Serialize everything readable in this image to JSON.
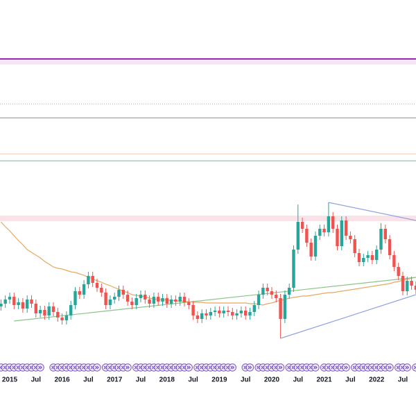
{
  "chart_data": {
    "type": "candlestick",
    "categories": [
      null,
      null,
      "2015",
      null,
      null,
      null,
      null,
      null,
      "Jul",
      null,
      null,
      null,
      null,
      null,
      "2016",
      null,
      null,
      null,
      null,
      null,
      "Jul",
      null,
      null,
      null,
      null,
      null,
      "2017",
      null,
      null,
      null,
      null,
      null,
      "Jul",
      null,
      null,
      null,
      null,
      null,
      "2018",
      null,
      null,
      null,
      null,
      null,
      "Jul",
      null,
      null,
      null,
      null,
      null,
      "2019",
      null,
      null,
      null,
      null,
      null,
      "Jul",
      null,
      null,
      null,
      null,
      null,
      "2020",
      null,
      null,
      null,
      null,
      null,
      "Jul",
      null,
      null,
      null,
      null,
      null,
      "2021",
      null,
      null,
      null,
      null,
      null,
      "Jul",
      null,
      null,
      null,
      null,
      null,
      "2022",
      null,
      null,
      null,
      null,
      null,
      "Jul",
      null,
      null,
      null
    ],
    "open": [
      158,
      162,
      168,
      172,
      160,
      164,
      155,
      168,
      162,
      148,
      153,
      145,
      158,
      150,
      142,
      138,
      145,
      160,
      180,
      175,
      190,
      202,
      192,
      185,
      178,
      160,
      168,
      172,
      182,
      175,
      165,
      160,
      170,
      175,
      168,
      162,
      172,
      165,
      170,
      162,
      168,
      165,
      172,
      164,
      160,
      145,
      140,
      148,
      145,
      150,
      152,
      148,
      152,
      150,
      145,
      148,
      152,
      145,
      150,
      160,
      175,
      185,
      180,
      175,
      170,
      140,
      175,
      185,
      240,
      280,
      270,
      250,
      230,
      260,
      270,
      265,
      288,
      270,
      245,
      282,
      260,
      255,
      235,
      222,
      228,
      232,
      225,
      240,
      270,
      255,
      232,
      215,
      202,
      180,
      195,
      188
    ],
    "high": [
      168,
      174,
      178,
      178,
      170,
      170,
      174,
      174,
      168,
      159,
      159,
      164,
      164,
      156,
      148,
      151,
      166,
      186,
      186,
      196,
      208,
      208,
      198,
      191,
      184,
      174,
      178,
      188,
      188,
      181,
      171,
      176,
      181,
      181,
      174,
      178,
      178,
      176,
      176,
      174,
      174,
      178,
      178,
      170,
      166,
      151,
      154,
      154,
      156,
      158,
      158,
      158,
      158,
      156,
      154,
      158,
      158,
      156,
      166,
      181,
      191,
      191,
      186,
      181,
      176,
      181,
      191,
      246,
      305,
      286,
      276,
      256,
      266,
      276,
      276,
      308,
      294,
      276,
      288,
      288,
      266,
      261,
      241,
      234,
      238,
      238,
      246,
      278,
      276,
      261,
      238,
      221,
      208,
      201,
      201,
      194
    ],
    "low": [
      152,
      156,
      162,
      154,
      154,
      149,
      149,
      156,
      142,
      142,
      139,
      139,
      144,
      136,
      132,
      132,
      139,
      154,
      169,
      169,
      184,
      186,
      179,
      172,
      154,
      154,
      162,
      166,
      169,
      159,
      154,
      154,
      164,
      162,
      156,
      156,
      159,
      159,
      156,
      156,
      159,
      159,
      158,
      154,
      139,
      134,
      134,
      139,
      139,
      144,
      142,
      142,
      144,
      139,
      139,
      142,
      139,
      139,
      144,
      154,
      169,
      174,
      169,
      164,
      112,
      134,
      169,
      179,
      234,
      264,
      244,
      224,
      224,
      254,
      259,
      259,
      264,
      239,
      239,
      254,
      249,
      229,
      216,
      216,
      222,
      219,
      219,
      234,
      249,
      226,
      209,
      196,
      174,
      174,
      182,
      176
    ],
    "close": [
      162,
      168,
      172,
      160,
      164,
      155,
      168,
      162,
      148,
      153,
      145,
      158,
      150,
      142,
      138,
      145,
      160,
      180,
      175,
      190,
      202,
      192,
      185,
      178,
      160,
      168,
      172,
      182,
      175,
      165,
      160,
      170,
      175,
      168,
      162,
      172,
      165,
      170,
      162,
      168,
      165,
      172,
      164,
      160,
      145,
      140,
      148,
      145,
      150,
      152,
      148,
      152,
      150,
      145,
      148,
      152,
      145,
      150,
      160,
      175,
      185,
      180,
      175,
      170,
      140,
      175,
      185,
      240,
      280,
      270,
      250,
      230,
      260,
      270,
      265,
      288,
      270,
      245,
      282,
      260,
      255,
      235,
      222,
      228,
      232,
      225,
      240,
      270,
      255,
      232,
      215,
      202,
      180,
      195,
      188,
      182
    ],
    "up_color": "#26a69a",
    "down_color": "#ef5350",
    "moving_average": {
      "color": "#e8a860",
      "values": [
        280,
        273,
        267,
        260,
        253,
        247,
        240,
        236,
        232,
        228,
        223,
        219,
        215,
        213,
        212,
        210,
        208,
        207,
        205,
        203,
        200,
        198,
        195,
        193,
        190,
        188,
        185,
        183,
        180,
        178,
        175,
        174,
        173,
        172,
        170,
        169,
        168,
        168,
        167,
        167,
        166,
        166,
        165,
        165,
        164,
        164,
        164,
        163,
        163,
        163,
        163,
        163,
        163,
        163,
        163,
        163,
        163,
        162,
        162,
        161,
        160,
        162,
        163,
        165,
        167,
        168,
        170,
        171,
        172,
        173,
        173,
        174,
        175,
        176,
        177,
        178,
        178,
        179,
        180,
        181,
        182,
        183,
        184,
        185,
        186,
        187,
        188,
        189,
        190,
        191,
        193,
        194,
        196,
        197,
        199,
        200
      ]
    },
    "levels": [
      {
        "value": 515,
        "color": "#9c27b0",
        "style": "band"
      },
      {
        "value": 450,
        "color": "#a5b0a5",
        "style": "dotted"
      },
      {
        "value": 430,
        "color": "#8a8a8a",
        "style": "solid"
      },
      {
        "value": 378,
        "color": "#f0c8a0",
        "style": "solid"
      },
      {
        "value": 368,
        "color": "#7fb09a",
        "style": "solid"
      },
      {
        "value": 285,
        "color": "#f8d7de",
        "style": "zone"
      }
    ],
    "trendlines": [
      {
        "from": [
          3,
          137
        ],
        "to": [
          95,
          200
        ],
        "color": "#8bc48a"
      },
      {
        "from": [
          75,
          308
        ],
        "to": [
          95,
          282
        ],
        "color": "#8fa3e0"
      },
      {
        "from": [
          64,
          112
        ],
        "to": [
          95,
          175
        ],
        "color": "#8fa3e0"
      }
    ],
    "ylim": [
      0,
      600
    ]
  }
}
